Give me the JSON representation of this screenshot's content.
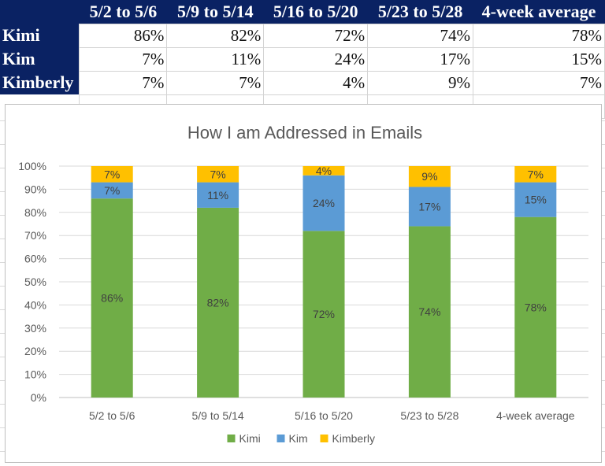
{
  "table": {
    "columns": [
      "5/2 to 5/6",
      "5/9 to 5/14",
      "5/16 to 5/20",
      "5/23 to 5/28",
      "4-week average"
    ],
    "rows": [
      {
        "name": "Kimi",
        "values": [
          "86%",
          "82%",
          "72%",
          "74%",
          "78%"
        ]
      },
      {
        "name": "Kim",
        "values": [
          "7%",
          "11%",
          "24%",
          "17%",
          "15%"
        ]
      },
      {
        "name": "Kimberly",
        "values": [
          "7%",
          "7%",
          "4%",
          "9%",
          "7%"
        ]
      }
    ]
  },
  "chart_data": {
    "type": "bar",
    "stacked": true,
    "title": "How I am Addressed in Emails",
    "xlabel": "",
    "ylabel": "",
    "categories": [
      "5/2 to 5/6",
      "5/9 to 5/14",
      "5/16 to 5/20",
      "5/23 to 5/28",
      "4-week average"
    ],
    "series": [
      {
        "name": "Kimi",
        "color": "#70ad47",
        "values": [
          86,
          82,
          72,
          74,
          78
        ]
      },
      {
        "name": "Kim",
        "color": "#5b9bd5",
        "values": [
          7,
          11,
          24,
          17,
          15
        ]
      },
      {
        "name": "Kimberly",
        "color": "#ffc000",
        "values": [
          7,
          7,
          4,
          9,
          7
        ]
      }
    ],
    "ylim": [
      0,
      100
    ],
    "y_ticks": [
      "0%",
      "10%",
      "20%",
      "30%",
      "40%",
      "50%",
      "60%",
      "70%",
      "80%",
      "90%",
      "100%"
    ],
    "grid": true,
    "legend_position": "bottom",
    "data_labels": true
  }
}
